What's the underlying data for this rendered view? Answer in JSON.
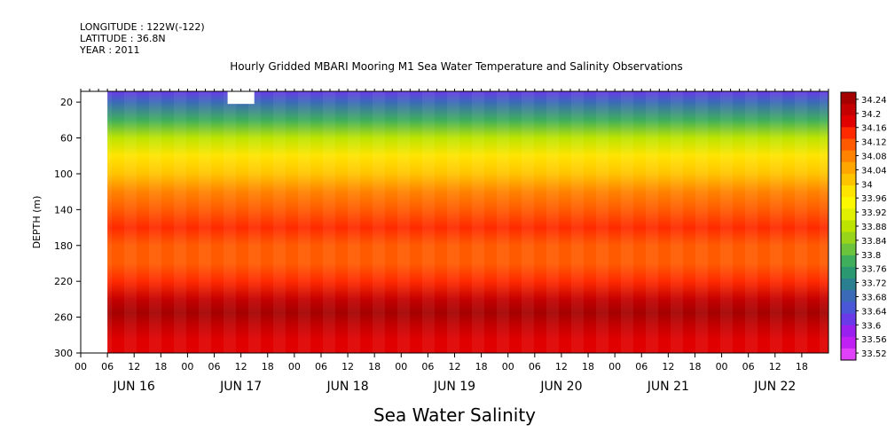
{
  "header": {
    "longitude": "LONGITUDE : 122W(-122)",
    "latitude": "LATITUDE : 36.8N",
    "year": "YEAR : 2011",
    "title": "Hourly Gridded MBARI Mooring M1 Sea Water Temperature and Salinity Observations"
  },
  "chart_data": {
    "type": "heatmap",
    "title": "Hourly Gridded MBARI Mooring M1 Sea Water Temperature and Salinity Observations",
    "xlabel": "Sea Water Salinity",
    "ylabel": "DEPTH (m)",
    "ylim": [
      300,
      0
    ],
    "x_hour_ticks": [
      "00",
      "06",
      "12",
      "18",
      "00",
      "06",
      "12",
      "18",
      "00",
      "06",
      "12",
      "18",
      "00",
      "06",
      "12",
      "18",
      "00",
      "06",
      "12",
      "18",
      "00",
      "06",
      "12",
      "18",
      "00",
      "06",
      "12",
      "18"
    ],
    "x_day_labels": [
      "JUN 16",
      "JUN 17",
      "JUN 18",
      "JUN 19",
      "JUN 20",
      "JUN 21",
      "JUN 22"
    ],
    "y_ticks": [
      "20",
      "60",
      "100",
      "140",
      "180",
      "220",
      "260",
      "300"
    ],
    "colorbar_labels": [
      "34.24",
      "34.2",
      "34.16",
      "34.12",
      "34.08",
      "34.04",
      "34",
      "33.96",
      "33.92",
      "33.88",
      "33.84",
      "33.8",
      "33.76",
      "33.72",
      "33.68",
      "33.64",
      "33.6",
      "33.56",
      "33.52"
    ],
    "colorbar_colors": [
      "#a50000",
      "#c40000",
      "#e00000",
      "#ff2a00",
      "#ff5a00",
      "#ff8200",
      "#ffa600",
      "#ffc400",
      "#ffe400",
      "#fcf800",
      "#e0f000",
      "#bde400",
      "#98d41a",
      "#6cc43c",
      "#3fae5c",
      "#2a9870",
      "#2a8090",
      "#3a6ab8",
      "#4a58d8",
      "#6a3ae8",
      "#9a20f0",
      "#c020f4",
      "#e040f8"
    ],
    "profile_depths": [
      8,
      20,
      40,
      60,
      80,
      100,
      120,
      140,
      160,
      180,
      200,
      220,
      240,
      255,
      270,
      285,
      300
    ],
    "profile_salinity": [
      33.64,
      33.7,
      33.8,
      33.89,
      33.97,
      34.02,
      34.06,
      34.1,
      34.12,
      34.1,
      34.09,
      34.13,
      34.19,
      34.23,
      34.2,
      34.17,
      34.15
    ],
    "data_start_hour": 6,
    "total_hours": 168
  }
}
